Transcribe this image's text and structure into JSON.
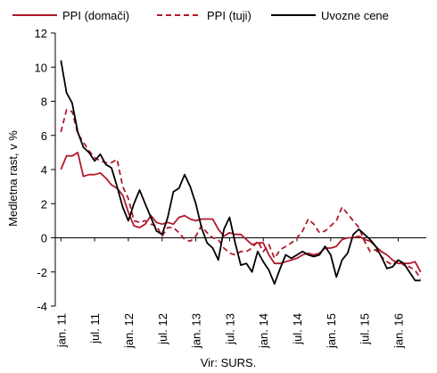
{
  "chart_data": {
    "type": "line",
    "ylabel": "Medletna rast, v %",
    "ylim": [
      -4,
      12
    ],
    "yticks": [
      -4,
      -2,
      0,
      2,
      4,
      6,
      8,
      10,
      12
    ],
    "grid": false,
    "legend_position": "top",
    "source": "Vir: SURS.",
    "x_tick_labels": [
      "jan. 11",
      "jul. 11",
      "jan. 12",
      "jul. 12",
      "jan. 13",
      "jul. 13",
      "jan. 14",
      "jul. 14",
      "jan. 15",
      "jul. 15",
      "jan. 16"
    ],
    "x_start": "2011-01",
    "series": [
      {
        "name": "PPI (domači)",
        "color": "#b2182b",
        "dash": "solid",
        "values": [
          4.0,
          4.8,
          4.8,
          5.0,
          3.6,
          3.7,
          3.7,
          3.8,
          3.5,
          3.1,
          2.9,
          2.5,
          1.5,
          0.7,
          0.6,
          0.8,
          1.3,
          0.9,
          0.8,
          0.9,
          0.8,
          1.2,
          1.3,
          1.1,
          1.0,
          1.1,
          1.1,
          1.1,
          0.5,
          0.1,
          0.3,
          0.2,
          0.2,
          -0.1,
          -0.4,
          -0.3,
          -0.3,
          -1.0,
          -1.5,
          -1.5,
          -1.4,
          -1.3,
          -1.2,
          -1.0,
          -0.9,
          -1.0,
          -0.9,
          -0.6,
          -0.6,
          -0.5,
          -0.1,
          0.0,
          0.0,
          0.1,
          -0.1,
          -0.2,
          -0.5,
          -0.8,
          -1.0,
          -1.3,
          -1.5,
          -1.5,
          -1.5,
          -1.4,
          -2.0
        ]
      },
      {
        "name": "PPI (tuji)",
        "color": "#b2182b",
        "dash": "dashed",
        "values": [
          6.2,
          7.5,
          7.4,
          6.1,
          5.6,
          5.1,
          4.7,
          4.5,
          4.4,
          4.4,
          4.6,
          3.0,
          2.3,
          1.0,
          0.9,
          1.0,
          0.8,
          0.7,
          0.1,
          0.6,
          0.6,
          0.3,
          -0.1,
          -0.2,
          0.1,
          0.7,
          0.3,
          0.0,
          -0.1,
          -0.6,
          -0.9,
          -1.0,
          -0.8,
          -0.8,
          -0.6,
          -0.2,
          -0.8,
          -0.4,
          -1.2,
          -0.7,
          -0.5,
          -0.3,
          0.0,
          0.4,
          1.1,
          0.8,
          0.3,
          0.4,
          0.7,
          1.0,
          1.8,
          1.4,
          1.0,
          0.6,
          -0.2,
          -0.8,
          -0.7,
          -1.1,
          -1.4,
          -1.6,
          -1.3,
          -1.6,
          -1.7,
          -1.9,
          -2.4
        ]
      },
      {
        "name": "Uvozne cene",
        "color": "#000000",
        "dash": "solid",
        "values": [
          10.4,
          8.5,
          7.9,
          6.2,
          5.3,
          5.0,
          4.5,
          4.9,
          4.3,
          4.1,
          3.0,
          1.8,
          1.0,
          2.0,
          2.8,
          2.0,
          1.2,
          0.4,
          0.2,
          1.2,
          2.7,
          2.9,
          3.7,
          3.0,
          2.0,
          0.6,
          -0.3,
          -0.6,
          -1.3,
          0.5,
          1.2,
          -0.3,
          -1.6,
          -1.5,
          -2.0,
          -0.8,
          -1.4,
          -1.9,
          -2.7,
          -1.8,
          -1.0,
          -1.2,
          -1.0,
          -0.8,
          -1.0,
          -1.1,
          -1.0,
          -0.5,
          -1.0,
          -2.3,
          -1.3,
          -0.9,
          0.2,
          0.5,
          0.2,
          -0.1,
          -0.5,
          -1.1,
          -1.8,
          -1.7,
          -1.3,
          -1.5,
          -2.0,
          -2.5,
          -2.5
        ]
      }
    ]
  }
}
